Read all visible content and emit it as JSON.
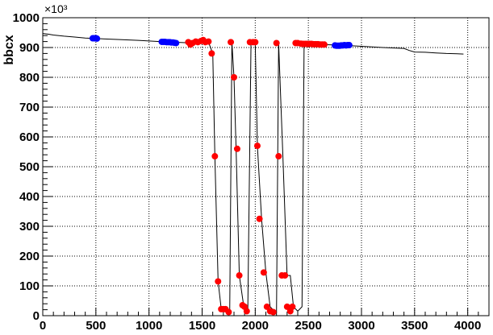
{
  "chart_data": {
    "type": "scatter",
    "ylabel": "bbcx",
    "y_exponent_label": "×10³",
    "xlim": [
      0,
      4200
    ],
    "ylim": [
      0,
      1000
    ],
    "x_ticks": [
      0,
      500,
      1000,
      1500,
      2000,
      2500,
      3000,
      3500,
      4000
    ],
    "y_ticks": [
      0,
      100,
      200,
      300,
      400,
      500,
      600,
      700,
      800,
      900,
      1000
    ],
    "grid": true,
    "colors": {
      "line": "#000000",
      "blue": "#0000ff",
      "red": "#ff0000",
      "grid": "#000000"
    },
    "line": {
      "x": [
        0,
        50,
        100,
        200,
        300,
        400,
        500,
        700,
        900,
        1100,
        1300,
        1400,
        1500,
        1560,
        1600,
        1620,
        1650,
        1680,
        1720,
        1760,
        1780,
        1800,
        1820,
        1850,
        1890,
        1930,
        1960,
        1980,
        2000,
        2020,
        2060,
        2100,
        2140,
        2180,
        2200,
        2220,
        2260,
        2300,
        2330,
        2360,
        2400,
        2440,
        2460,
        2600,
        2800,
        3000,
        3200,
        3400,
        3450,
        3500,
        3600,
        3700,
        3800,
        3900,
        3960
      ],
      "y": [
        947,
        945,
        942,
        938,
        935,
        932,
        930,
        927,
        924,
        920,
        917,
        915,
        920,
        918,
        880,
        535,
        115,
        22,
        22,
        12,
        918,
        800,
        560,
        135,
        35,
        15,
        918,
        918,
        918,
        570,
        325,
        145,
        30,
        15,
        12,
        915,
        535,
        135,
        135,
        30,
        15,
        30,
        915,
        910,
        908,
        904,
        900,
        897,
        890,
        885,
        884,
        882,
        880,
        879,
        878
      ]
    },
    "series": [
      {
        "color": "blue",
        "x": [
          470,
          480,
          490,
          500,
          510,
          1120,
          1135,
          1150,
          1165,
          1180,
          1195,
          1210,
          1225,
          1240,
          1255,
          2750,
          2765,
          2780,
          2795,
          2810,
          2825,
          2840,
          2855,
          2870,
          2885
        ],
        "y": [
          931,
          931,
          931,
          931,
          930,
          919,
          919,
          919,
          918,
          918,
          918,
          917,
          917,
          916,
          915,
          907,
          906,
          906,
          906,
          907,
          907,
          908,
          907,
          908,
          908
        ]
      },
      {
        "color": "red",
        "x": [
          1370,
          1390,
          1410,
          1440,
          1460,
          1490,
          1510,
          1530,
          1560,
          1590,
          1620,
          1650,
          1680,
          1700,
          1720,
          1750,
          1770,
          1800,
          1830,
          1850,
          1880,
          1900,
          1920,
          1950,
          1980,
          2000,
          2020,
          2040,
          2080,
          2110,
          2140,
          2170,
          2200,
          2220,
          2250,
          2280,
          2300,
          2330,
          2350,
          2380,
          2400,
          2430,
          2450,
          2470,
          2490,
          2510,
          2530,
          2550,
          2570,
          2590,
          2610,
          2630,
          2650
        ],
        "y": [
          918,
          910,
          915,
          920,
          918,
          922,
          925,
          918,
          920,
          880,
          535,
          115,
          22,
          22,
          22,
          12,
          918,
          800,
          560,
          135,
          35,
          30,
          15,
          918,
          918,
          918,
          570,
          325,
          145,
          30,
          15,
          12,
          915,
          535,
          135,
          135,
          30,
          15,
          30,
          915,
          915,
          913,
          912,
          912,
          912,
          912,
          912,
          911,
          911,
          911,
          910,
          910,
          910
        ]
      }
    ]
  }
}
